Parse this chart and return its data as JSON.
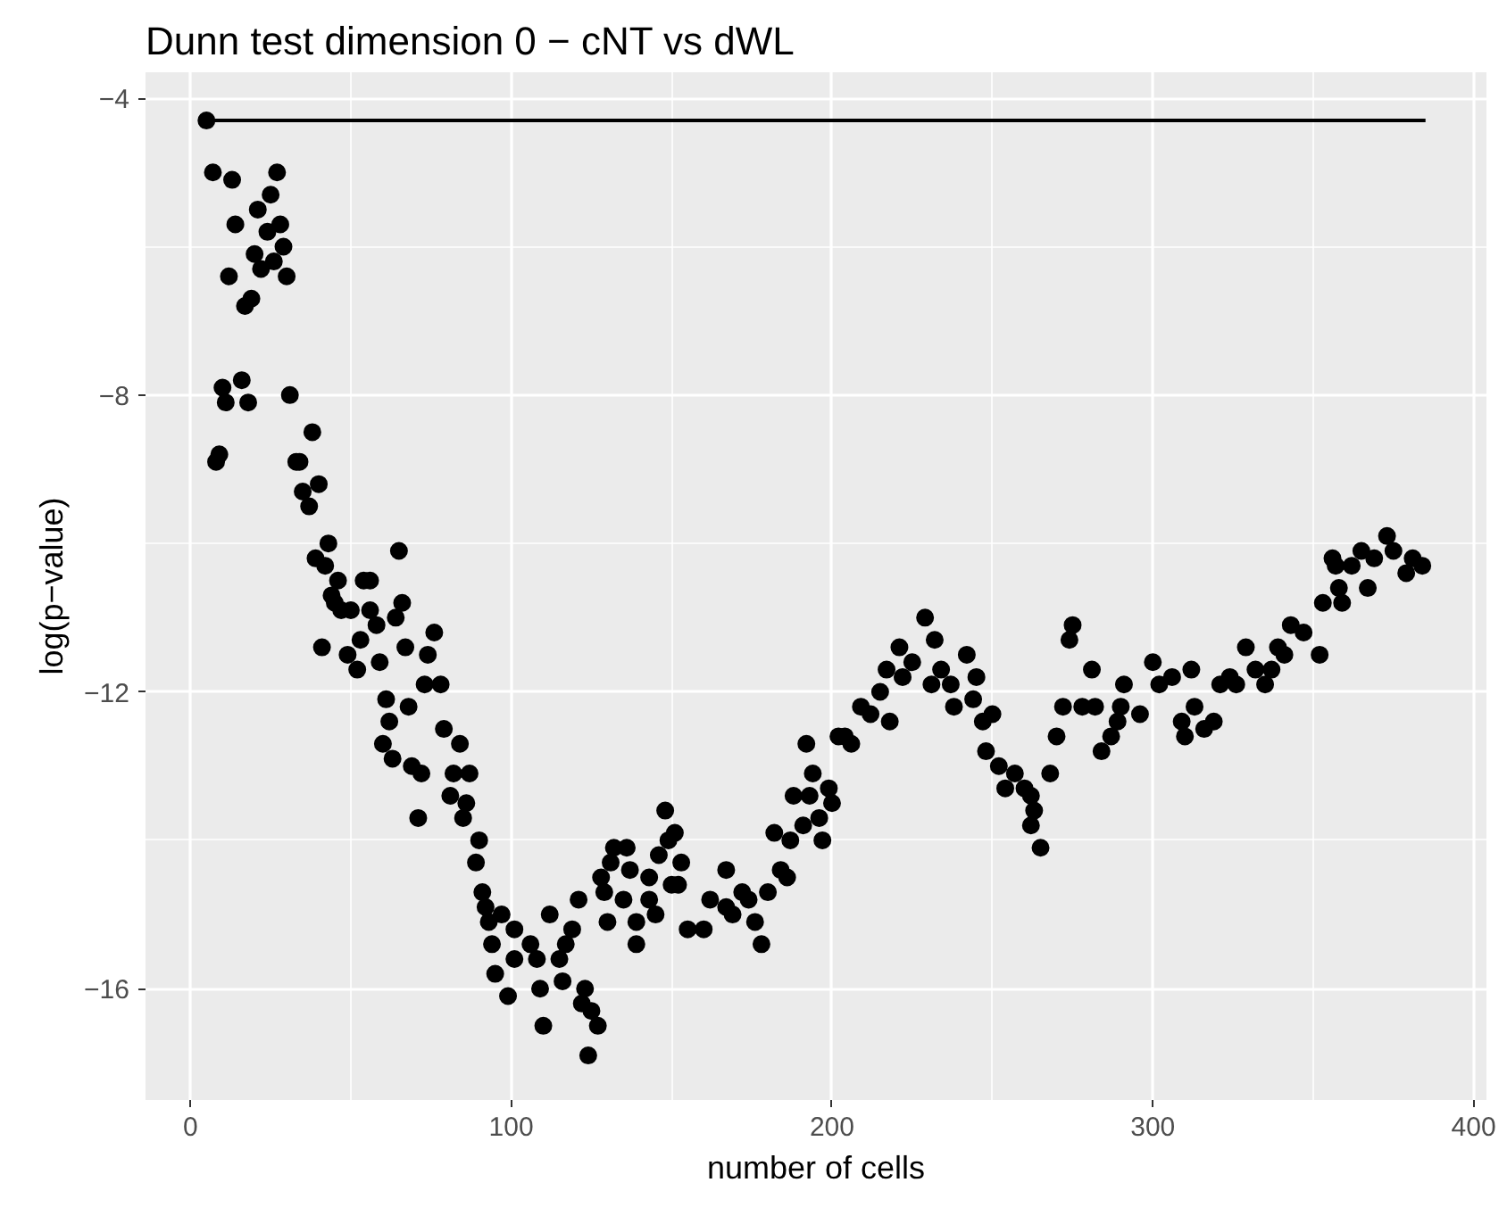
{
  "chart_data": {
    "type": "scatter",
    "title": "Dunn test dimension 0 − cNT vs dWL",
    "xlabel": "number of cells",
    "ylabel": "log(p−value)",
    "xlim": [
      -14,
      404
    ],
    "ylim": [
      -17.5,
      -3.65
    ],
    "xticks": [
      0,
      100,
      200,
      300,
      400
    ],
    "yticks": [
      -16,
      -12,
      -8,
      -4
    ],
    "grid": true,
    "series": [
      {
        "type": "line",
        "color": "#000000",
        "x": [
          5,
          385
        ],
        "values": [
          -4.3,
          -4.3
        ]
      },
      {
        "marker": "circle",
        "color": "#000000",
        "x": [
          5,
          7,
          13,
          27,
          25,
          21,
          14,
          28,
          24,
          29,
          20,
          26,
          22,
          12,
          30,
          17,
          19,
          10,
          11,
          16,
          18,
          31,
          38,
          9,
          8,
          33,
          34,
          35,
          40,
          37,
          43,
          39,
          65,
          42,
          46,
          54,
          56,
          44,
          45,
          47,
          50,
          56,
          66,
          64,
          58,
          76,
          41,
          53,
          49,
          52,
          59,
          67,
          74,
          73,
          78,
          61,
          68,
          62,
          79,
          84,
          60,
          63,
          69,
          72,
          82,
          87,
          81,
          86,
          85,
          71,
          90,
          89,
          91,
          92,
          93,
          97,
          94,
          101,
          106,
          101,
          108,
          95,
          99,
          112,
          119,
          117,
          115,
          116,
          109,
          110,
          123,
          122,
          125,
          127,
          124,
          121,
          128,
          129,
          130,
          132,
          136,
          131,
          137,
          135,
          139,
          139,
          143,
          143,
          145,
          146,
          148,
          149,
          150,
          151,
          153,
          152,
          155,
          160,
          167,
          162,
          167,
          172,
          174,
          169,
          176,
          178,
          180,
          182,
          184,
          186,
          187,
          191,
          188,
          192,
          194,
          193,
          196,
          197,
          199,
          200,
          202,
          204,
          206,
          209,
          212,
          217,
          215,
          218,
          221,
          222,
          225,
          229,
          232,
          231,
          234,
          237,
          238,
          242,
          245,
          244,
          247,
          250,
          248,
          252,
          257,
          254,
          262,
          262,
          260,
          263,
          265,
          268,
          270,
          272,
          274,
          275,
          281,
          278,
          282,
          284,
          287,
          289,
          290,
          291,
          296,
          300,
          302,
          306,
          312,
          309,
          310,
          313,
          316,
          319,
          321,
          324,
          326,
          329,
          332,
          335,
          337,
          339,
          343,
          341,
          347,
          352,
          353,
          356,
          357,
          358,
          359,
          362,
          365,
          367,
          369,
          373,
          375,
          379,
          381,
          384
        ],
        "values": [
          -4.3,
          -5.0,
          -5.1,
          -5.0,
          -5.3,
          -5.5,
          -5.7,
          -5.7,
          -5.8,
          -6.0,
          -6.1,
          -6.2,
          -6.3,
          -6.4,
          -6.4,
          -6.8,
          -6.7,
          -7.9,
          -8.1,
          -7.8,
          -8.1,
          -8.0,
          -8.5,
          -8.8,
          -8.9,
          -8.9,
          -8.9,
          -9.3,
          -9.2,
          -9.5,
          -10.0,
          -10.2,
          -10.1,
          -10.3,
          -10.5,
          -10.5,
          -10.5,
          -10.7,
          -10.8,
          -10.9,
          -10.9,
          -10.9,
          -10.8,
          -11.0,
          -11.1,
          -11.2,
          -11.4,
          -11.3,
          -11.5,
          -11.7,
          -11.6,
          -11.4,
          -11.5,
          -11.9,
          -11.9,
          -12.1,
          -12.2,
          -12.4,
          -12.5,
          -12.7,
          -12.7,
          -12.9,
          -13.0,
          -13.1,
          -13.1,
          -13.1,
          -13.4,
          -13.5,
          -13.7,
          -13.7,
          -14.0,
          -14.3,
          -14.7,
          -14.9,
          -15.1,
          -15.0,
          -15.4,
          -15.2,
          -15.4,
          -15.6,
          -15.6,
          -15.8,
          -16.1,
          -15.0,
          -15.2,
          -15.4,
          -15.6,
          -15.9,
          -16.0,
          -16.5,
          -16.0,
          -16.2,
          -16.3,
          -16.5,
          -16.9,
          -14.8,
          -14.5,
          -14.7,
          -15.1,
          -14.1,
          -14.1,
          -14.3,
          -14.4,
          -14.8,
          -15.1,
          -15.4,
          -14.5,
          -14.8,
          -15.0,
          -14.2,
          -13.6,
          -14.0,
          -14.6,
          -13.9,
          -14.3,
          -14.6,
          -15.2,
          -15.2,
          -14.4,
          -14.8,
          -14.9,
          -14.7,
          -14.8,
          -15.0,
          -15.1,
          -15.4,
          -14.7,
          -13.9,
          -14.4,
          -14.5,
          -14.0,
          -13.8,
          -13.4,
          -12.7,
          -13.1,
          -13.4,
          -13.7,
          -14.0,
          -13.3,
          -13.5,
          -12.6,
          -12.6,
          -12.7,
          -12.2,
          -12.3,
          -11.7,
          -12.0,
          -12.4,
          -11.4,
          -11.8,
          -11.6,
          -11.0,
          -11.3,
          -11.9,
          -11.7,
          -11.9,
          -12.2,
          -11.5,
          -11.8,
          -12.1,
          -12.4,
          -12.3,
          -12.8,
          -13.0,
          -13.1,
          -13.3,
          -13.4,
          -13.8,
          -13.3,
          -13.6,
          -14.1,
          -13.1,
          -12.6,
          -12.2,
          -11.3,
          -11.1,
          -11.7,
          -12.2,
          -12.2,
          -12.8,
          -12.6,
          -12.4,
          -12.2,
          -11.9,
          -12.3,
          -11.6,
          -11.9,
          -11.8,
          -11.7,
          -12.4,
          -12.6,
          -12.2,
          -12.5,
          -12.4,
          -11.9,
          -11.8,
          -11.9,
          -11.4,
          -11.7,
          -11.9,
          -11.7,
          -11.4,
          -11.1,
          -11.5,
          -11.2,
          -11.5,
          -10.8,
          -10.2,
          -10.3,
          -10.6,
          -10.8,
          -10.3,
          -10.1,
          -10.6,
          -10.2,
          -9.9,
          -10.1,
          -10.4,
          -10.2,
          -10.3
        ]
      }
    ]
  }
}
